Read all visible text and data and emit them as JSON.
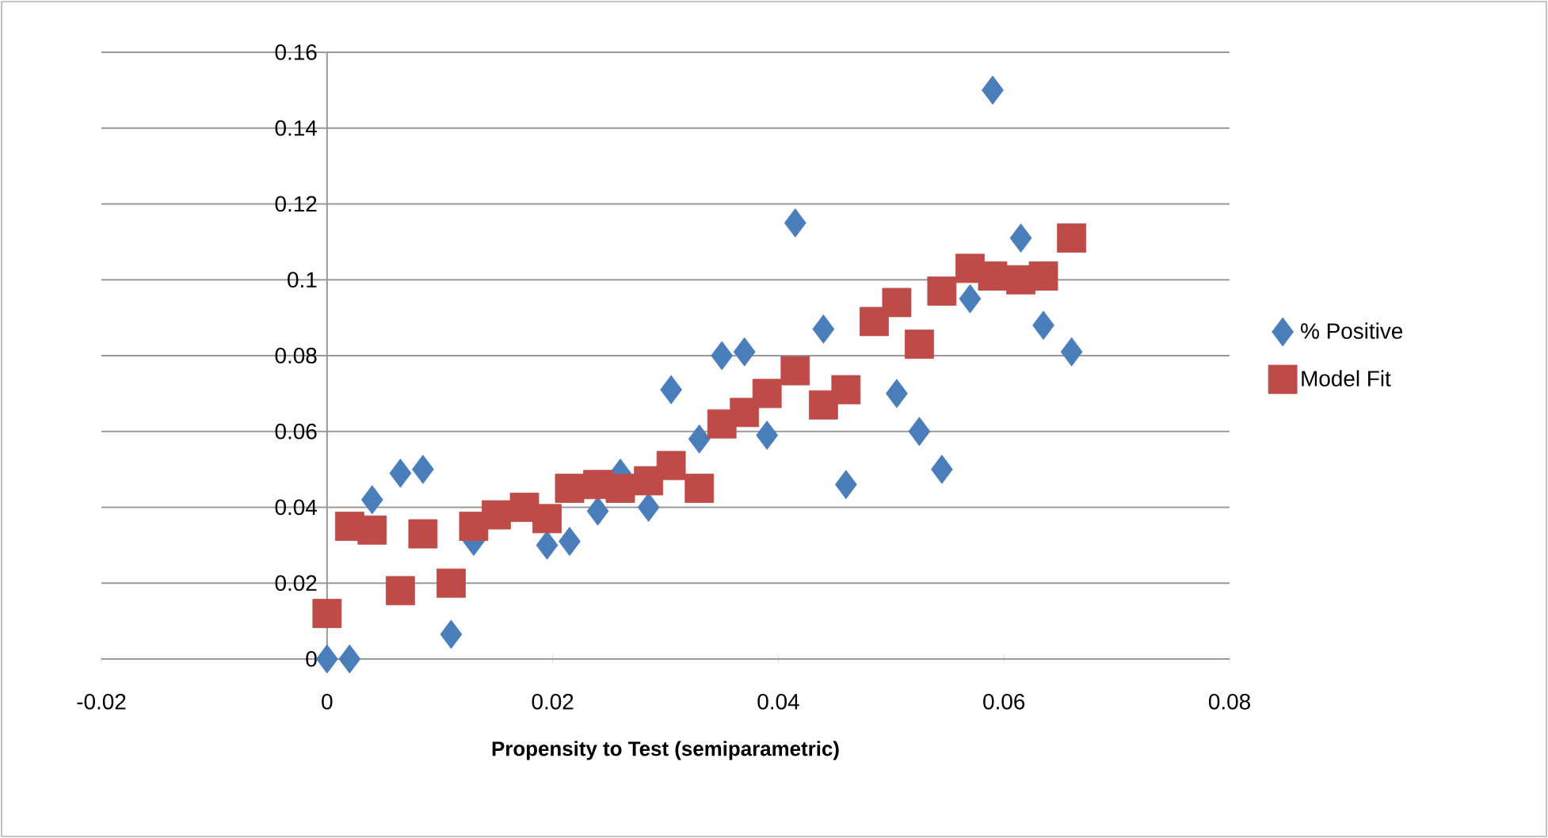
{
  "chart_data": {
    "type": "scatter",
    "xlabel": "Propensity to Test (semiparametric)",
    "xlim": [
      -0.02,
      0.08
    ],
    "xticks": [
      -0.02,
      0,
      0.02,
      0.04,
      0.06,
      0.08
    ],
    "ylim": [
      0,
      0.16
    ],
    "yticks": [
      0,
      0.02,
      0.04,
      0.06,
      0.08,
      0.1,
      0.12,
      0.14,
      0.16
    ],
    "grid": "y",
    "legend": "right",
    "series": [
      {
        "name": "% Positive",
        "color": "#4a7ebb",
        "marker": "diamond",
        "x": [
          0,
          0.002,
          0.004,
          0.0065,
          0.0085,
          0.011,
          0.013,
          0.015,
          0.0175,
          0.0195,
          0.0215,
          0.024,
          0.026,
          0.0285,
          0.0305,
          0.033,
          0.035,
          0.037,
          0.039,
          0.0415,
          0.044,
          0.046,
          0.0485,
          0.0505,
          0.0525,
          0.0545,
          0.057,
          0.059,
          0.0615,
          0.0635,
          0.066
        ],
        "values": [
          0,
          0,
          0.042,
          0.049,
          0.05,
          0.0065,
          0.031,
          null,
          null,
          0.03,
          0.031,
          0.039,
          0.049,
          0.04,
          0.071,
          0.058,
          0.08,
          0.081,
          0.059,
          0.115,
          0.087,
          0.046,
          null,
          0.07,
          0.06,
          0.05,
          0.095,
          0.15,
          0.111,
          0.088,
          0.081
        ]
      },
      {
        "name": "Model Fit",
        "color": "#be4b48",
        "marker": "square",
        "x": [
          0,
          0.002,
          0.004,
          0.0065,
          0.0085,
          0.011,
          0.013,
          0.015,
          0.0175,
          0.0195,
          0.0215,
          0.024,
          0.026,
          0.0285,
          0.0305,
          0.033,
          0.035,
          0.037,
          0.039,
          0.0415,
          0.044,
          0.046,
          0.0485,
          0.0505,
          0.0525,
          0.0545,
          0.057,
          0.059,
          0.0615,
          0.0635,
          0.066
        ],
        "values": [
          0.012,
          0.035,
          0.034,
          0.018,
          0.033,
          0.02,
          0.035,
          0.038,
          0.04,
          0.037,
          0.045,
          0.046,
          0.045,
          0.047,
          0.051,
          0.045,
          0.062,
          0.065,
          0.07,
          0.076,
          0.067,
          0.071,
          0.089,
          0.094,
          0.083,
          0.097,
          0.103,
          0.101,
          0.1,
          0.101,
          0.111
        ]
      }
    ]
  }
}
